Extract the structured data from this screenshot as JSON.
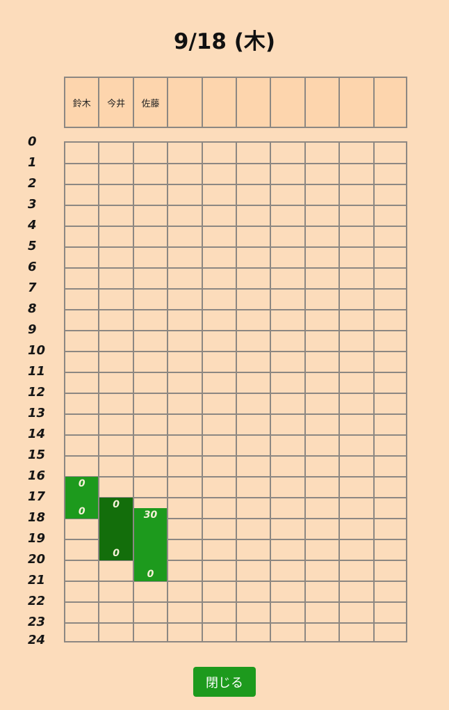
{
  "title": "9/18 (木)",
  "columns": [
    "鈴木",
    "今井",
    "佐藤",
    "",
    "",
    "",
    "",
    "",
    "",
    ""
  ],
  "hours": [
    "0",
    "1",
    "2",
    "3",
    "4",
    "5",
    "6",
    "7",
    "8",
    "9",
    "10",
    "11",
    "12",
    "13",
    "14",
    "15",
    "16",
    "17",
    "18",
    "19",
    "20",
    "21",
    "22",
    "23",
    "24"
  ],
  "shifts": [
    {
      "column": 0,
      "start": 16.0,
      "end": 18.0,
      "start_label": "0",
      "end_label": "0",
      "color": "#1d9a1d"
    },
    {
      "column": 1,
      "start": 17.0,
      "end": 20.0,
      "start_label": "0",
      "end_label": "0",
      "color": "#136e0b"
    },
    {
      "column": 2,
      "start": 17.5,
      "end": 21.0,
      "start_label": "30",
      "end_label": "0",
      "color": "#1d9a1d"
    }
  ],
  "close_label": "閉じる"
}
